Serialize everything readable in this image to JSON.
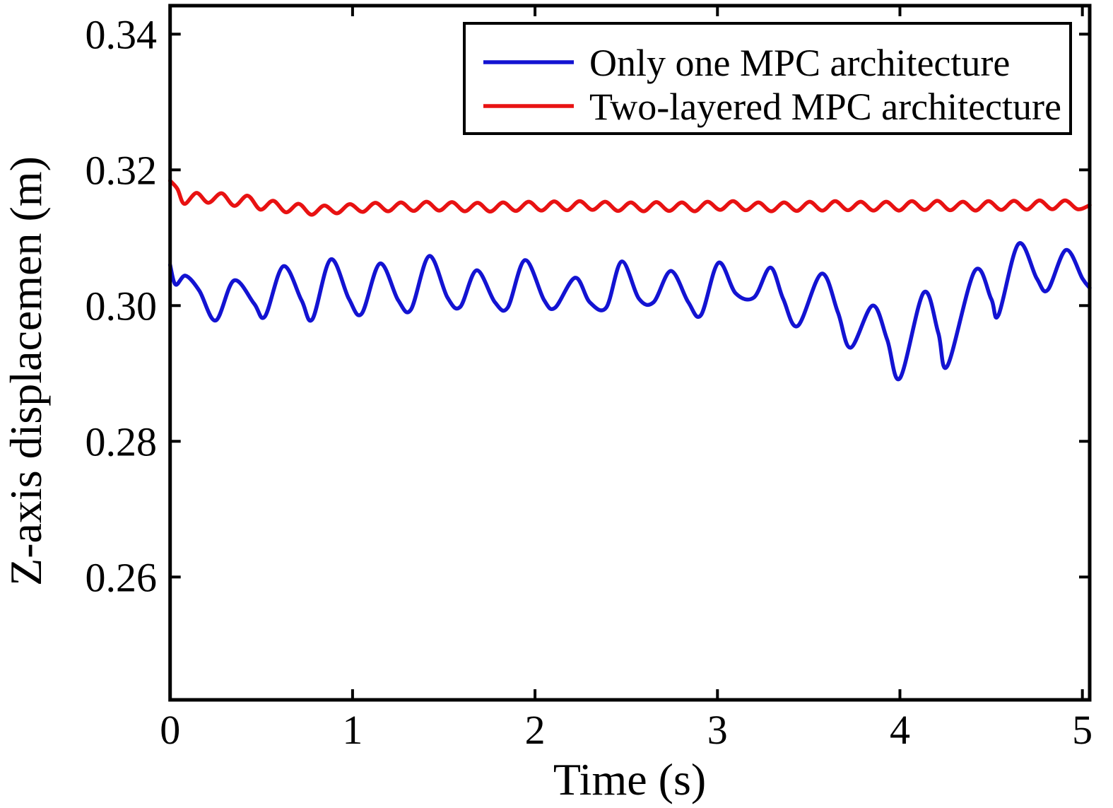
{
  "chart_data": {
    "type": "line",
    "title": "",
    "xlabel": "Time (s)",
    "ylabel": "Z-axis displacemen (m)",
    "xlim": [
      0,
      5.04
    ],
    "ylim": [
      0.2419,
      0.3442
    ],
    "xticks": [
      0,
      1,
      2,
      3,
      4,
      5
    ],
    "xtick_labels": [
      "0",
      "1",
      "2",
      "3",
      "4",
      "5"
    ],
    "yticks": [
      0.26,
      0.28,
      0.3,
      0.32,
      0.34
    ],
    "ytick_labels": [
      "0.26",
      "0.28",
      "0.30",
      "0.32",
      "0.34"
    ],
    "grid": false,
    "background": "#ffffff",
    "axis_color": "#000000",
    "legend": {
      "position": "top-right-inside",
      "border": true
    },
    "series": [
      {
        "name": "Only one MPC architecture",
        "color": "#1313d2",
        "line_width": 5.5,
        "points": [
          [
            0.0,
            0.306
          ],
          [
            0.03,
            0.3031
          ],
          [
            0.085,
            0.3044
          ],
          [
            0.16,
            0.3022
          ],
          [
            0.25,
            0.2978
          ],
          [
            0.35,
            0.3037
          ],
          [
            0.46,
            0.3003
          ],
          [
            0.52,
            0.2984
          ],
          [
            0.62,
            0.3058
          ],
          [
            0.72,
            0.3008
          ],
          [
            0.78,
            0.298
          ],
          [
            0.88,
            0.3068
          ],
          [
            0.98,
            0.301
          ],
          [
            1.05,
            0.2988
          ],
          [
            1.15,
            0.3062
          ],
          [
            1.25,
            0.3008
          ],
          [
            1.32,
            0.2994
          ],
          [
            1.42,
            0.3073
          ],
          [
            1.52,
            0.3012
          ],
          [
            1.59,
            0.2998
          ],
          [
            1.68,
            0.3052
          ],
          [
            1.78,
            0.3005
          ],
          [
            1.85,
            0.2997
          ],
          [
            1.945,
            0.3067
          ],
          [
            2.05,
            0.3008
          ],
          [
            2.11,
            0.2997
          ],
          [
            2.22,
            0.3041
          ],
          [
            2.3,
            0.3005
          ],
          [
            2.39,
            0.2997
          ],
          [
            2.475,
            0.3065
          ],
          [
            2.57,
            0.301
          ],
          [
            2.65,
            0.3005
          ],
          [
            2.745,
            0.3051
          ],
          [
            2.84,
            0.3005
          ],
          [
            2.91,
            0.2986
          ],
          [
            3.005,
            0.3063
          ],
          [
            3.1,
            0.3018
          ],
          [
            3.2,
            0.3012
          ],
          [
            3.29,
            0.3056
          ],
          [
            3.36,
            0.301
          ],
          [
            3.44,
            0.297
          ],
          [
            3.57,
            0.3047
          ],
          [
            3.66,
            0.299
          ],
          [
            3.73,
            0.2938
          ],
          [
            3.85,
            0.3
          ],
          [
            3.93,
            0.295
          ],
          [
            4.0,
            0.2893
          ],
          [
            4.13,
            0.3019
          ],
          [
            4.21,
            0.296
          ],
          [
            4.26,
            0.2911
          ],
          [
            4.41,
            0.3051
          ],
          [
            4.5,
            0.301
          ],
          [
            4.54,
            0.2986
          ],
          [
            4.65,
            0.3091
          ],
          [
            4.75,
            0.304
          ],
          [
            4.81,
            0.3023
          ],
          [
            4.91,
            0.3082
          ],
          [
            5.0,
            0.304
          ],
          [
            5.04,
            0.3026
          ]
        ]
      },
      {
        "name": "Two-layered MPC architecture",
        "color": "#e81212",
        "line_width": 5.5,
        "points": [
          [
            0.0,
            0.3184
          ],
          [
            0.04,
            0.3172
          ],
          [
            0.078,
            0.315
          ],
          [
            0.145,
            0.3166
          ],
          [
            0.21,
            0.31515
          ],
          [
            0.282,
            0.31655
          ],
          [
            0.352,
            0.3147
          ],
          [
            0.425,
            0.3162
          ],
          [
            0.495,
            0.31415
          ],
          [
            0.565,
            0.31545
          ],
          [
            0.635,
            0.31375
          ],
          [
            0.705,
            0.315
          ],
          [
            0.775,
            0.3134
          ],
          [
            0.845,
            0.31475
          ],
          [
            0.915,
            0.3136
          ],
          [
            0.985,
            0.31495
          ],
          [
            1.055,
            0.3138
          ],
          [
            1.125,
            0.31515
          ],
          [
            1.195,
            0.3139
          ],
          [
            1.265,
            0.3152
          ],
          [
            1.335,
            0.31395
          ],
          [
            1.405,
            0.3153
          ],
          [
            1.475,
            0.314
          ],
          [
            1.545,
            0.31525
          ],
          [
            1.615,
            0.3139
          ],
          [
            1.685,
            0.31515
          ],
          [
            1.755,
            0.31385
          ],
          [
            1.825,
            0.3152
          ],
          [
            1.895,
            0.31395
          ],
          [
            1.965,
            0.3153
          ],
          [
            2.035,
            0.314
          ],
          [
            2.105,
            0.31535
          ],
          [
            2.175,
            0.31405
          ],
          [
            2.245,
            0.3154
          ],
          [
            2.315,
            0.3141
          ],
          [
            2.385,
            0.3153
          ],
          [
            2.455,
            0.31395
          ],
          [
            2.525,
            0.3152
          ],
          [
            2.595,
            0.3139
          ],
          [
            2.665,
            0.31525
          ],
          [
            2.735,
            0.31395
          ],
          [
            2.805,
            0.3152
          ],
          [
            2.875,
            0.3139
          ],
          [
            2.945,
            0.3153
          ],
          [
            3.015,
            0.3141
          ],
          [
            3.085,
            0.3154
          ],
          [
            3.155,
            0.31405
          ],
          [
            3.225,
            0.3152
          ],
          [
            3.295,
            0.3139
          ],
          [
            3.365,
            0.3152
          ],
          [
            3.435,
            0.31395
          ],
          [
            3.505,
            0.3153
          ],
          [
            3.575,
            0.314
          ],
          [
            3.645,
            0.3154
          ],
          [
            3.715,
            0.31405
          ],
          [
            3.785,
            0.3153
          ],
          [
            3.855,
            0.314
          ],
          [
            3.925,
            0.3153
          ],
          [
            3.995,
            0.314
          ],
          [
            4.065,
            0.3154
          ],
          [
            4.135,
            0.3141
          ],
          [
            4.205,
            0.31545
          ],
          [
            4.275,
            0.31405
          ],
          [
            4.345,
            0.3153
          ],
          [
            4.415,
            0.314
          ],
          [
            4.485,
            0.3154
          ],
          [
            4.555,
            0.3141
          ],
          [
            4.625,
            0.31545
          ],
          [
            4.695,
            0.31415
          ],
          [
            4.765,
            0.3155
          ],
          [
            4.835,
            0.3142
          ],
          [
            4.905,
            0.3155
          ],
          [
            4.975,
            0.3142
          ],
          [
            5.04,
            0.3148
          ]
        ]
      }
    ]
  }
}
